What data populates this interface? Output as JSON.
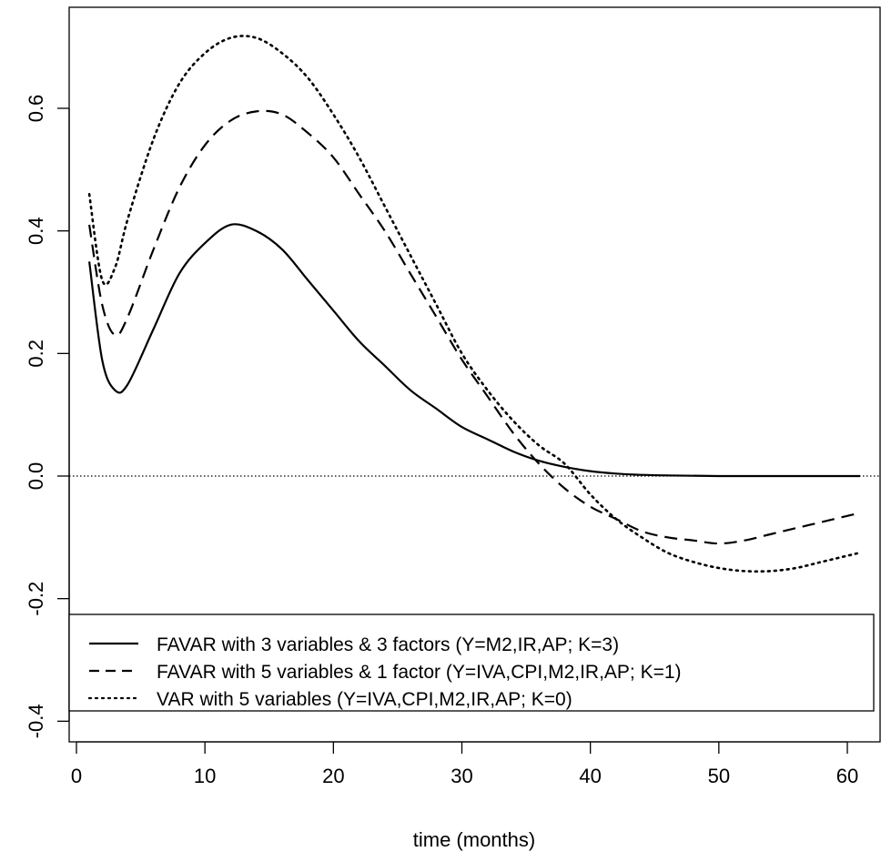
{
  "chart_data": {
    "type": "line",
    "title": "",
    "xlabel": "time (months)",
    "ylabel": "",
    "xlim": [
      1,
      61
    ],
    "ylim": [
      -0.41,
      0.77
    ],
    "xticks": [
      0,
      10,
      20,
      30,
      40,
      50,
      60
    ],
    "yticks": [
      -0.4,
      -0.2,
      0.0,
      0.2,
      0.4,
      0.6
    ],
    "ytick_labels": [
      "-0.4",
      "-0.2",
      "0.0",
      "0.2",
      "0.4",
      "0.6"
    ],
    "xtick_labels": [
      "0",
      "10",
      "20",
      "30",
      "40",
      "50",
      "60"
    ],
    "zero_line": true,
    "grid": false,
    "legend_position": "bottom",
    "series": [
      {
        "name": "FAVAR with 3 variables & 3 factors (Y=M2,IR,AP; K=3)",
        "line_style": "solid",
        "x": [
          1,
          2,
          3,
          4,
          6,
          8,
          10,
          12,
          14,
          16,
          18,
          20,
          22,
          24,
          26,
          28,
          30,
          32,
          34,
          36,
          38,
          40,
          42,
          44,
          46,
          50,
          55,
          61
        ],
        "y": [
          0.35,
          0.19,
          0.14,
          0.15,
          0.24,
          0.33,
          0.38,
          0.41,
          0.4,
          0.37,
          0.32,
          0.27,
          0.22,
          0.18,
          0.14,
          0.11,
          0.08,
          0.06,
          0.04,
          0.025,
          0.015,
          0.008,
          0.004,
          0.002,
          0.001,
          0.0,
          0.0,
          0.0
        ]
      },
      {
        "name": "FAVAR with 5 variables & 1 factor (Y=IVA,CPI,M2,IR,AP; K=1)",
        "line_style": "dashed",
        "x": [
          1,
          2,
          3,
          4,
          6,
          8,
          10,
          12,
          14,
          16,
          18,
          20,
          22,
          24,
          26,
          28,
          30,
          32,
          34,
          36,
          38,
          40,
          42,
          44,
          46,
          48,
          50,
          52,
          54,
          56,
          58,
          61
        ],
        "y": [
          0.41,
          0.28,
          0.23,
          0.26,
          0.37,
          0.47,
          0.54,
          0.58,
          0.595,
          0.59,
          0.56,
          0.52,
          0.46,
          0.4,
          0.33,
          0.26,
          0.19,
          0.13,
          0.07,
          0.02,
          -0.02,
          -0.05,
          -0.07,
          -0.09,
          -0.1,
          -0.105,
          -0.11,
          -0.105,
          -0.095,
          -0.085,
          -0.075,
          -0.06
        ]
      },
      {
        "name": "VAR with 5 variables (Y=IVA,CPI,M2,IR,AP; K=0)",
        "line_style": "dotted",
        "x": [
          1,
          2,
          3,
          4,
          6,
          8,
          10,
          12,
          14,
          16,
          18,
          20,
          22,
          24,
          26,
          28,
          30,
          32,
          34,
          36,
          38,
          40,
          42,
          44,
          46,
          48,
          50,
          52,
          54,
          56,
          58,
          61
        ],
        "y": [
          0.46,
          0.32,
          0.34,
          0.42,
          0.55,
          0.64,
          0.69,
          0.715,
          0.715,
          0.69,
          0.65,
          0.59,
          0.52,
          0.44,
          0.36,
          0.28,
          0.2,
          0.14,
          0.09,
          0.05,
          0.02,
          -0.03,
          -0.07,
          -0.1,
          -0.125,
          -0.14,
          -0.15,
          -0.155,
          -0.155,
          -0.15,
          -0.14,
          -0.125
        ]
      }
    ]
  }
}
